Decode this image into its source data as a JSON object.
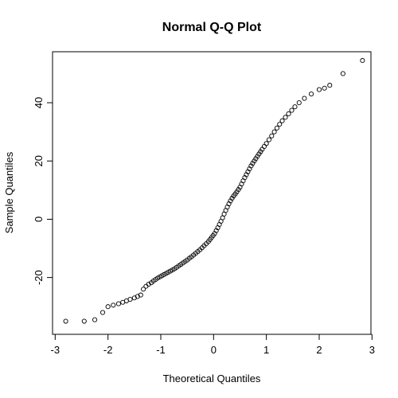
{
  "chart_data": {
    "type": "scatter",
    "title": "Normal Q-Q Plot",
    "xlabel": "Theoretical Quantiles",
    "ylabel": "Sample Quantiles",
    "xlim": [
      -3.05,
      2.98
    ],
    "ylim": [
      -39.5,
      57.5
    ],
    "x_ticks": [
      -3,
      -2,
      -1,
      0,
      1,
      2,
      3
    ],
    "x_tick_labels": [
      "-3",
      "-2",
      "-1",
      "0",
      "1",
      "2",
      "3"
    ],
    "y_ticks": [
      -20,
      0,
      20,
      40
    ],
    "y_tick_labels": [
      "-20",
      "0",
      "20",
      "40"
    ],
    "marker": "open-circle",
    "grid": false,
    "legend": "none",
    "colors": {
      "points": "#000000",
      "axes": "#000000",
      "background": "#ffffff"
    },
    "series": [
      {
        "n": 200,
        "points": [
          [
            -2.8,
            -35
          ],
          [
            -2.45,
            -35
          ],
          [
            -2.25,
            -34.5
          ],
          [
            -2.1,
            -32
          ],
          [
            -2.0,
            -30
          ],
          [
            -1.9,
            -29.5
          ],
          [
            -1.8,
            -29
          ],
          [
            -1.72,
            -28.5
          ],
          [
            -1.65,
            -28
          ],
          [
            -1.58,
            -27.5
          ],
          [
            -1.5,
            -27
          ],
          [
            -1.44,
            -26.5
          ],
          [
            -1.38,
            -26
          ],
          [
            -1.33,
            -24
          ],
          [
            -1.28,
            -23
          ],
          [
            -1.23,
            -22.3
          ],
          [
            -1.18,
            -21.8
          ],
          [
            -1.14,
            -21.2
          ],
          [
            -1.1,
            -20.7
          ],
          [
            -1.06,
            -20.2
          ],
          [
            -1.02,
            -19.8
          ],
          [
            -0.98,
            -19.4
          ],
          [
            -0.94,
            -19
          ],
          [
            -0.9,
            -18.6
          ],
          [
            -0.86,
            -18.2
          ],
          [
            -0.82,
            -17.8
          ],
          [
            -0.78,
            -17.4
          ],
          [
            -0.74,
            -17
          ],
          [
            -0.7,
            -16.5
          ],
          [
            -0.66,
            -16
          ],
          [
            -0.62,
            -15.5
          ],
          [
            -0.58,
            -15
          ],
          [
            -0.54,
            -14.5
          ],
          [
            -0.5,
            -14
          ],
          [
            -0.46,
            -13.4
          ],
          [
            -0.42,
            -12.9
          ],
          [
            -0.38,
            -12.3
          ],
          [
            -0.34,
            -11.7
          ],
          [
            -0.3,
            -11.1
          ],
          [
            -0.26,
            -10.5
          ],
          [
            -0.22,
            -9.8
          ],
          [
            -0.18,
            -9.1
          ],
          [
            -0.14,
            -8.4
          ],
          [
            -0.1,
            -7.7
          ],
          [
            -0.07,
            -7
          ],
          [
            -0.04,
            -6.3
          ],
          [
            -0.01,
            -5.6
          ],
          [
            0.02,
            -4.9
          ],
          [
            0.05,
            -3.9
          ],
          [
            0.08,
            -2.9
          ],
          [
            0.11,
            -1.8
          ],
          [
            0.14,
            -0.7
          ],
          [
            0.17,
            0.5
          ],
          [
            0.2,
            1.8
          ],
          [
            0.23,
            3
          ],
          [
            0.26,
            4.2
          ],
          [
            0.29,
            5.3
          ],
          [
            0.32,
            6.3
          ],
          [
            0.35,
            7.2
          ],
          [
            0.38,
            8
          ],
          [
            0.41,
            8.7
          ],
          [
            0.44,
            9.4
          ],
          [
            0.47,
            10.2
          ],
          [
            0.5,
            11
          ],
          [
            0.53,
            12.1
          ],
          [
            0.56,
            13.2
          ],
          [
            0.59,
            14.3
          ],
          [
            0.62,
            15.3
          ],
          [
            0.65,
            16.3
          ],
          [
            0.68,
            17.3
          ],
          [
            0.71,
            18.3
          ],
          [
            0.74,
            19.2
          ],
          [
            0.77,
            20
          ],
          [
            0.8,
            20.8
          ],
          [
            0.83,
            21.6
          ],
          [
            0.86,
            22.4
          ],
          [
            0.89,
            23.2
          ],
          [
            0.92,
            24
          ],
          [
            0.96,
            25
          ],
          [
            1.0,
            26
          ],
          [
            1.05,
            27.3
          ],
          [
            1.1,
            28.6
          ],
          [
            1.15,
            30
          ],
          [
            1.2,
            31.3
          ],
          [
            1.25,
            32.6
          ],
          [
            1.3,
            33.8
          ],
          [
            1.36,
            35
          ],
          [
            1.42,
            36.2
          ],
          [
            1.48,
            37.4
          ],
          [
            1.54,
            38.6
          ],
          [
            1.62,
            40
          ],
          [
            1.72,
            41.5
          ],
          [
            1.85,
            43
          ],
          [
            2.0,
            44.5
          ],
          [
            2.1,
            45
          ],
          [
            2.2,
            46
          ],
          [
            2.45,
            50
          ],
          [
            2.82,
            54.5
          ]
        ]
      }
    ]
  }
}
